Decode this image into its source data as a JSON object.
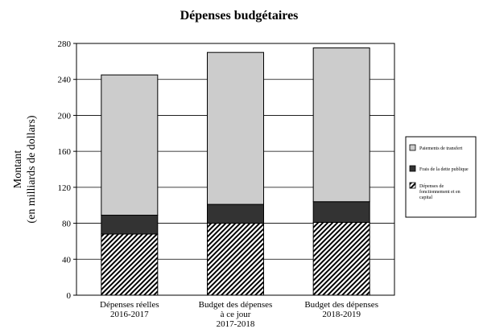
{
  "chart_data": {
    "type": "bar",
    "stacked": true,
    "title": "Dépenses budgétaires",
    "ylabel": [
      "Montant",
      "(en milliards de dollars)"
    ],
    "xlabel": "",
    "ylim": [
      0,
      280
    ],
    "yticks": [
      0,
      40,
      80,
      120,
      160,
      200,
      240,
      280
    ],
    "grid": true,
    "legend_position": "right",
    "categories": [
      [
        "Dépenses réelles",
        "2016-2017"
      ],
      [
        "Budget des dépenses",
        "à ce jour",
        "2017-2018"
      ],
      [
        "Budget des dépenses",
        "2018-2019"
      ]
    ],
    "series": [
      {
        "name": [
          "Dépenses de",
          "fonctionnement et en",
          "capital"
        ],
        "values": [
          68,
          80,
          81
        ],
        "color": "#ffffff",
        "pattern": "diagonal-hatch"
      },
      {
        "name": [
          "Frais de la dette publique"
        ],
        "values": [
          21,
          21,
          23
        ],
        "color": "#333333"
      },
      {
        "name": [
          "Paiements de transfert"
        ],
        "values": [
          156,
          169,
          171
        ],
        "color": "#cccccc"
      }
    ]
  }
}
